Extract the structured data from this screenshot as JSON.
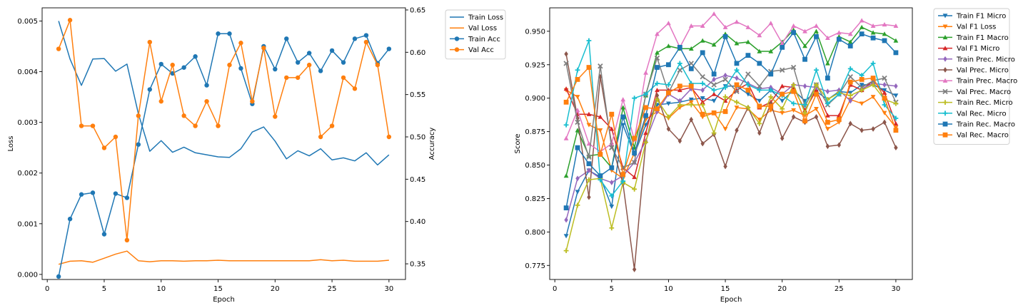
{
  "chart_data": [
    {
      "type": "line",
      "xlabel": "Epoch",
      "ylabel": "Loss",
      "y2label": "Accuracy",
      "xlim": [
        -0.45,
        31.45
      ],
      "ylim": [
        -0.0001,
        0.00526
      ],
      "y2lim": [
        0.3315,
        0.6525
      ],
      "xticks": [
        0,
        5,
        10,
        15,
        20,
        25,
        30
      ],
      "yticks": [
        0.0,
        0.001,
        0.002,
        0.003,
        0.004,
        0.005
      ],
      "ytick_labels": [
        "0.000",
        "0.001",
        "0.002",
        "0.003",
        "0.004",
        "0.005"
      ],
      "y2ticks": [
        0.35,
        0.4,
        0.45,
        0.5,
        0.55,
        0.6,
        0.65
      ],
      "y2tick_labels": [
        "0.35",
        "0.40",
        "0.45",
        "0.50",
        "0.55",
        "0.60",
        "0.65"
      ],
      "legend_position": "outside-top-right",
      "grid": false,
      "x": [
        1,
        2,
        3,
        4,
        5,
        6,
        7,
        8,
        9,
        10,
        11,
        12,
        13,
        14,
        15,
        16,
        17,
        18,
        19,
        20,
        21,
        22,
        23,
        24,
        25,
        26,
        27,
        28,
        29,
        30
      ],
      "series": [
        {
          "name": "Train Loss",
          "axis": "left",
          "color": "#1f77b4",
          "marker": "none",
          "values": [
            0.005,
            0.00425,
            0.00373,
            0.00425,
            0.00426,
            0.00401,
            0.00415,
            0.00317,
            0.00243,
            0.00264,
            0.00241,
            0.00251,
            0.0024,
            0.00236,
            0.00232,
            0.00231,
            0.00248,
            0.00281,
            0.00291,
            0.00263,
            0.00228,
            0.00244,
            0.00234,
            0.00248,
            0.00226,
            0.0023,
            0.00224,
            0.0024,
            0.00216,
            0.00236
          ]
        },
        {
          "name": "Val Loss",
          "axis": "left",
          "color": "#ff7f0e",
          "marker": "none",
          "values": [
            0.0002,
            0.00026,
            0.00027,
            0.00024,
            0.00032,
            0.0004,
            0.00046,
            0.00027,
            0.00025,
            0.00027,
            0.00027,
            0.00026,
            0.00027,
            0.00027,
            0.00028,
            0.00027,
            0.00027,
            0.00027,
            0.00027,
            0.00027,
            0.00027,
            0.00027,
            0.00027,
            0.00029,
            0.00027,
            0.00028,
            0.00026,
            0.00026,
            0.00026,
            0.00028
          ]
        },
        {
          "name": "Train Acc",
          "axis": "right",
          "color": "#1f77b4",
          "marker": "circle",
          "values": [
            0.335,
            0.403,
            0.432,
            0.434,
            0.385,
            0.433,
            0.428,
            0.491,
            0.556,
            0.586,
            0.575,
            0.582,
            0.595,
            0.561,
            0.622,
            0.622,
            0.581,
            0.539,
            0.607,
            0.58,
            0.616,
            0.588,
            0.599,
            0.578,
            0.602,
            0.588,
            0.616,
            0.62,
            0.587,
            0.604
          ]
        },
        {
          "name": "Val Acc",
          "axis": "right",
          "color": "#ff7f0e",
          "marker": "circle",
          "values": [
            0.604,
            0.638,
            0.513,
            0.513,
            0.487,
            0.5,
            0.378,
            0.525,
            0.612,
            0.542,
            0.585,
            0.525,
            0.513,
            0.542,
            0.513,
            0.585,
            0.611,
            0.542,
            0.605,
            0.524,
            0.57,
            0.57,
            0.585,
            0.5,
            0.513,
            0.57,
            0.557,
            0.612,
            0.585,
            0.5
          ]
        }
      ]
    },
    {
      "type": "line",
      "xlabel": "Epoch",
      "ylabel": "Score",
      "xlim": [
        -0.45,
        31.45
      ],
      "ylim": [
        0.7645,
        0.9675
      ],
      "xticks": [
        0,
        5,
        10,
        15,
        20,
        25,
        30
      ],
      "yticks": [
        0.775,
        0.8,
        0.825,
        0.85,
        0.875,
        0.9,
        0.925,
        0.95
      ],
      "ytick_labels": [
        "0.775",
        "0.800",
        "0.825",
        "0.850",
        "0.875",
        "0.900",
        "0.925",
        "0.950"
      ],
      "legend_position": "outside-top-right",
      "grid": false,
      "x": [
        1,
        2,
        3,
        4,
        5,
        6,
        7,
        8,
        9,
        10,
        11,
        12,
        13,
        14,
        15,
        16,
        17,
        18,
        19,
        20,
        21,
        22,
        23,
        24,
        25,
        26,
        27,
        28,
        29,
        30
      ],
      "series": [
        {
          "name": "Train F1 Micro",
          "color": "#1f77b4",
          "marker": "tri-down",
          "values": [
            0.797,
            0.83,
            0.846,
            0.841,
            0.819,
            0.88,
            0.858,
            0.88,
            0.895,
            0.896,
            0.897,
            0.899,
            0.9,
            0.898,
            0.909,
            0.909,
            0.903,
            0.898,
            0.906,
            0.898,
            0.906,
            0.898,
            0.905,
            0.899,
            0.905,
            0.904,
            0.91,
            0.91,
            0.906,
            0.902
          ]
        },
        {
          "name": "Val F1 Loss",
          "color": "#ff7f0e",
          "marker": "tri-down",
          "values": [
            0.906,
            0.901,
            0.88,
            0.876,
            0.846,
            0.84,
            0.859,
            0.884,
            0.89,
            0.885,
            0.893,
            0.897,
            0.886,
            0.889,
            0.877,
            0.893,
            0.892,
            0.884,
            0.891,
            0.889,
            0.891,
            0.887,
            0.892,
            0.877,
            0.882,
            0.899,
            0.896,
            0.901,
            0.889,
            0.878
          ]
        },
        {
          "name": "Train F1 Macro",
          "color": "#2ca02c",
          "marker": "tri-up",
          "values": [
            0.842,
            0.876,
            0.857,
            0.858,
            0.848,
            0.893,
            0.863,
            0.902,
            0.934,
            0.939,
            0.937,
            0.937,
            0.943,
            0.94,
            0.948,
            0.941,
            0.942,
            0.935,
            0.935,
            0.942,
            0.951,
            0.939,
            0.95,
            0.926,
            0.946,
            0.942,
            0.953,
            0.949,
            0.948,
            0.943
          ]
        },
        {
          "name": "Val F1 Micro",
          "color": "#d62728",
          "marker": "tri-up",
          "values": [
            0.907,
            0.888,
            0.888,
            0.886,
            0.877,
            0.848,
            0.841,
            0.874,
            0.906,
            0.906,
            0.906,
            0.908,
            0.897,
            0.903,
            0.898,
            0.906,
            0.911,
            0.893,
            0.897,
            0.909,
            0.908,
            0.891,
            0.906,
            0.887,
            0.887,
            0.91,
            0.906,
            0.913,
            0.904,
            0.881
          ]
        },
        {
          "name": "Train Prec. Micro",
          "color": "#9467bd",
          "marker": "diamond",
          "values": [
            0.809,
            0.84,
            0.846,
            0.84,
            0.837,
            0.842,
            0.852,
            0.868,
            0.89,
            0.903,
            0.898,
            0.907,
            0.906,
            0.914,
            0.917,
            0.915,
            0.911,
            0.907,
            0.908,
            0.903,
            0.91,
            0.909,
            0.908,
            0.905,
            0.906,
            0.898,
            0.907,
            0.911,
            0.91,
            0.909
          ]
        },
        {
          "name": "Val Prec. Micro",
          "color": "#8c564b",
          "marker": "diamond",
          "values": [
            0.933,
            0.885,
            0.826,
            0.916,
            0.866,
            0.836,
            0.772,
            0.867,
            0.902,
            0.877,
            0.868,
            0.884,
            0.866,
            0.873,
            0.849,
            0.876,
            0.893,
            0.874,
            0.896,
            0.87,
            0.886,
            0.882,
            0.886,
            0.864,
            0.865,
            0.881,
            0.876,
            0.877,
            0.882,
            0.863
          ]
        },
        {
          "name": "Train Prec. Macro",
          "color": "#e377c2",
          "marker": "tri-up",
          "values": [
            0.87,
            0.891,
            0.866,
            0.86,
            0.866,
            0.899,
            0.869,
            0.919,
            0.948,
            0.956,
            0.938,
            0.954,
            0.954,
            0.963,
            0.953,
            0.957,
            0.953,
            0.947,
            0.956,
            0.941,
            0.954,
            0.95,
            0.954,
            0.945,
            0.949,
            0.948,
            0.958,
            0.954,
            0.955,
            0.954
          ]
        },
        {
          "name": "Val Prec. Macro",
          "color": "#7f7f7f",
          "marker": "x",
          "values": [
            0.926,
            0.882,
            0.856,
            0.924,
            0.863,
            0.848,
            0.852,
            0.903,
            0.93,
            0.904,
            0.921,
            0.926,
            0.916,
            0.91,
            0.914,
            0.905,
            0.918,
            0.909,
            0.92,
            0.921,
            0.923,
            0.894,
            0.91,
            0.895,
            0.903,
            0.916,
            0.908,
            0.913,
            0.915,
            0.897
          ]
        },
        {
          "name": "Train Rec. Micro",
          "color": "#bcbd22",
          "marker": "plus",
          "values": [
            0.786,
            0.82,
            0.839,
            0.84,
            0.803,
            0.837,
            0.832,
            0.867,
            0.899,
            0.886,
            0.895,
            0.895,
            0.895,
            0.874,
            0.901,
            0.897,
            0.893,
            0.881,
            0.901,
            0.892,
            0.91,
            0.889,
            0.91,
            0.899,
            0.904,
            0.902,
            0.906,
            0.91,
            0.899,
            0.896
          ]
        },
        {
          "name": "Val Rec. Micro",
          "color": "#17becf",
          "marker": "plus",
          "values": [
            0.88,
            0.921,
            0.943,
            0.839,
            0.827,
            0.838,
            0.9,
            0.903,
            0.911,
            0.91,
            0.926,
            0.911,
            0.911,
            0.906,
            0.908,
            0.921,
            0.91,
            0.906,
            0.906,
            0.902,
            0.896,
            0.895,
            0.921,
            0.896,
            0.903,
            0.922,
            0.917,
            0.926,
            0.895,
            0.885
          ]
        },
        {
          "name": "Train Rec. Macro",
          "color": "#1f77b4",
          "marker": "square",
          "values": [
            0.818,
            0.863,
            0.851,
            0.842,
            0.848,
            0.886,
            0.859,
            0.887,
            0.923,
            0.925,
            0.938,
            0.922,
            0.934,
            0.918,
            0.946,
            0.926,
            0.932,
            0.926,
            0.918,
            0.938,
            0.949,
            0.929,
            0.946,
            0.915,
            0.944,
            0.939,
            0.948,
            0.945,
            0.943,
            0.934
          ]
        },
        {
          "name": "Val Rec. Macro",
          "color": "#ff7f0e",
          "marker": "square",
          "values": [
            0.897,
            0.914,
            0.923,
            0.858,
            0.888,
            0.843,
            0.87,
            0.893,
            0.892,
            0.904,
            0.909,
            0.909,
            0.888,
            0.889,
            0.89,
            0.91,
            0.906,
            0.894,
            0.894,
            0.903,
            0.905,
            0.883,
            0.903,
            0.882,
            0.884,
            0.912,
            0.914,
            0.915,
            0.9,
            0.876
          ]
        }
      ]
    }
  ]
}
